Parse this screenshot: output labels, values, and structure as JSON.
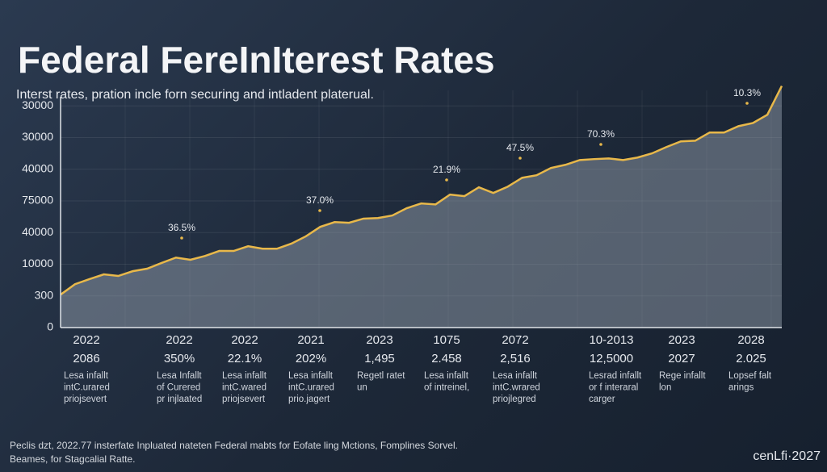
{
  "chart_data": {
    "type": "area",
    "title": "Federal FereInIterest Rates",
    "subtitle": "Interst rates, pration incle forn securing and intladent platerual.",
    "ylim": [
      0,
      8
    ],
    "yticks": [
      {
        "value": 0,
        "label": "0"
      },
      {
        "value": 1,
        "label": "300"
      },
      {
        "value": 2,
        "label": "10000"
      },
      {
        "value": 3,
        "label": "40000"
      },
      {
        "value": 4,
        "label": "75000"
      },
      {
        "value": 5,
        "label": "40000"
      },
      {
        "value": 6,
        "label": "30000"
      },
      {
        "value": 7,
        "label": "30000"
      }
    ],
    "color": "#e8b84a",
    "grid": true,
    "values": [
      1.04,
      1.37,
      1.53,
      1.68,
      1.63,
      1.78,
      1.86,
      2.04,
      2.21,
      2.14,
      2.26,
      2.42,
      2.42,
      2.57,
      2.49,
      2.49,
      2.65,
      2.88,
      3.18,
      3.33,
      3.31,
      3.44,
      3.46,
      3.54,
      3.77,
      3.92,
      3.89,
      4.2,
      4.15,
      4.43,
      4.25,
      4.45,
      4.73,
      4.81,
      5.04,
      5.14,
      5.29,
      5.32,
      5.34,
      5.29,
      5.37,
      5.5,
      5.7,
      5.88,
      5.9,
      6.16,
      6.16,
      6.36,
      6.46,
      6.72,
      7.63
    ],
    "annotations": [
      "36.5%",
      "37.0%",
      "21.9%",
      "47.5%",
      "70.3%",
      "10.3%"
    ]
  },
  "columns": [
    [
      "2022",
      "2086",
      "Lesa infallt",
      "intC.urared",
      "priojsevert"
    ],
    [
      "2022",
      "350%",
      "Lesa Infallt",
      "of Curered",
      "pr injlaated"
    ],
    [
      "2022",
      "22.1%",
      "Lesa infallt",
      "intC.wared",
      "priojsevert"
    ],
    [
      "2021",
      "202%",
      "Lesa infallt",
      "intC.urared",
      "prio.jagert"
    ],
    [
      "2023",
      "1,495",
      "Regetl ratet",
      "un"
    ],
    [
      "1075",
      "2.458",
      "Lesa infallt",
      "of intreinel,"
    ],
    [
      "2072",
      "2,516",
      "Lesa infallt",
      "intC.wrared",
      "priojlegred"
    ],
    [
      "10-2013",
      "12,5000",
      "Lesrad infallt",
      "or f interaral",
      "carger"
    ],
    [
      "2023",
      "2027",
      "Rege infallt",
      "lon"
    ],
    [
      "2028",
      "2.025",
      "Lopsef falt",
      "arings"
    ]
  ],
  "footer": [
    "Peclis dzt, 2022.77 insterfate Inpluated nateten Federal mabts for Eofate ling Mctions, Fomplines Sorvel.",
    "Beames, for Stagcalial Ratte."
  ],
  "brand": "cenLfi·2027"
}
